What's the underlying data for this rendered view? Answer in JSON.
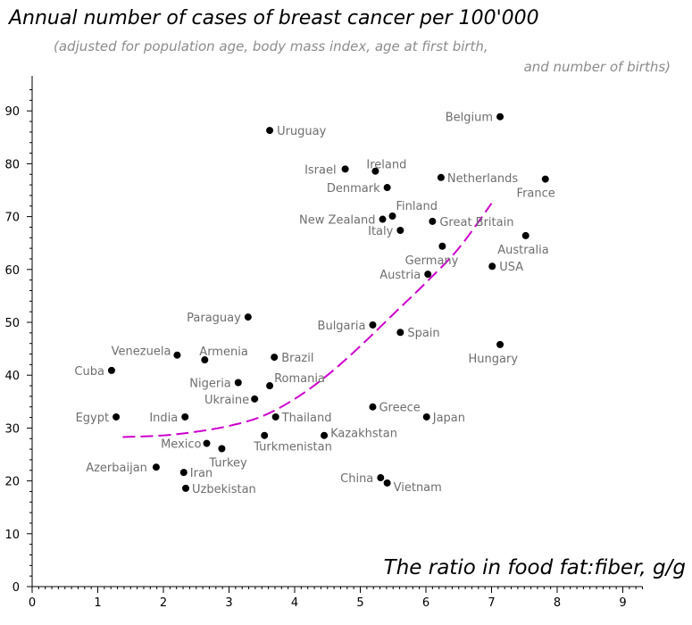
{
  "chart_data": {
    "type": "scatter",
    "title": "Annual number of cases of breast cancer per 100'000",
    "subtitle_lines": [
      "(adjusted for population age, body mass index, age at first birth,",
      "and number of births)"
    ],
    "xlabel": "The ratio in food fat:fiber, g/g",
    "ylabel": "",
    "xlim": [
      0,
      9.3
    ],
    "ylim": [
      0,
      95
    ],
    "x_ticks": [
      0,
      1,
      2,
      3,
      4,
      5,
      6,
      7,
      8,
      9
    ],
    "y_ticks": [
      0,
      10,
      20,
      30,
      40,
      50,
      60,
      70,
      80,
      90
    ],
    "grid": false,
    "point_color": "#000000",
    "trend_color": "#cc00cc",
    "points": [
      {
        "label": "Uruguay",
        "x": 3.62,
        "y": 86.3
      },
      {
        "label": "Belgium",
        "x": 7.13,
        "y": 88.9
      },
      {
        "label": "Israel",
        "x": 4.77,
        "y": 79.0
      },
      {
        "label": "Ireland",
        "x": 5.23,
        "y": 78.6
      },
      {
        "label": "Netherlands",
        "x": 6.23,
        "y": 77.4
      },
      {
        "label": "France",
        "x": 7.82,
        "y": 77.1
      },
      {
        "label": "Denmark",
        "x": 5.41,
        "y": 75.5
      },
      {
        "label": "New Zealand",
        "x": 5.34,
        "y": 69.5
      },
      {
        "label": "Finland",
        "x": 5.49,
        "y": 70.1
      },
      {
        "label": "Great Britain",
        "x": 6.1,
        "y": 69.1
      },
      {
        "label": "Italy",
        "x": 5.61,
        "y": 67.4
      },
      {
        "label": "Australia",
        "x": 7.52,
        "y": 66.4
      },
      {
        "label": "Germany",
        "x": 6.25,
        "y": 64.4
      },
      {
        "label": "USA",
        "x": 7.01,
        "y": 60.6
      },
      {
        "label": "Austria",
        "x": 6.03,
        "y": 59.1
      },
      {
        "label": "Paraguay",
        "x": 3.29,
        "y": 51.0
      },
      {
        "label": "Bulgaria",
        "x": 5.19,
        "y": 49.5
      },
      {
        "label": "Spain",
        "x": 5.61,
        "y": 48.1
      },
      {
        "label": "Hungary",
        "x": 7.13,
        "y": 45.8
      },
      {
        "label": "Venezuela",
        "x": 2.21,
        "y": 43.8
      },
      {
        "label": "Armenia",
        "x": 2.63,
        "y": 42.9
      },
      {
        "label": "Brazil",
        "x": 3.69,
        "y": 43.4
      },
      {
        "label": "Cuba",
        "x": 1.21,
        "y": 40.9
      },
      {
        "label": "Nigeria",
        "x": 3.14,
        "y": 38.6
      },
      {
        "label": "Romania",
        "x": 3.62,
        "y": 38.0
      },
      {
        "label": "Ukraine",
        "x": 3.39,
        "y": 35.5
      },
      {
        "label": "Greece",
        "x": 5.19,
        "y": 34.0
      },
      {
        "label": "Egypt",
        "x": 1.28,
        "y": 32.1
      },
      {
        "label": "India",
        "x": 2.33,
        "y": 32.1
      },
      {
        "label": "Thailand",
        "x": 3.71,
        "y": 32.1
      },
      {
        "label": "Japan",
        "x": 6.01,
        "y": 32.1
      },
      {
        "label": "Turkmenistan",
        "x": 3.54,
        "y": 28.6
      },
      {
        "label": "Kazakhstan",
        "x": 4.45,
        "y": 28.6
      },
      {
        "label": "Mexico",
        "x": 2.66,
        "y": 27.1
      },
      {
        "label": "Turkey",
        "x": 2.89,
        "y": 26.1
      },
      {
        "label": "Azerbaijan",
        "x": 1.89,
        "y": 22.6
      },
      {
        "label": "Iran",
        "x": 2.31,
        "y": 21.6
      },
      {
        "label": "China",
        "x": 5.31,
        "y": 20.6
      },
      {
        "label": "Vietnam",
        "x": 5.41,
        "y": 19.6
      },
      {
        "label": "Uzbekistan",
        "x": 2.34,
        "y": 18.6
      }
    ],
    "trend_line": [
      {
        "x": 1.38,
        "y": 28.3
      },
      {
        "x": 2.0,
        "y": 28.6
      },
      {
        "x": 2.5,
        "y": 29.3
      },
      {
        "x": 3.0,
        "y": 30.4
      },
      {
        "x": 3.5,
        "y": 32.2
      },
      {
        "x": 4.0,
        "y": 35.5
      },
      {
        "x": 4.5,
        "y": 40.0
      },
      {
        "x": 5.0,
        "y": 45.5
      },
      {
        "x": 5.5,
        "y": 51.5
      },
      {
        "x": 6.0,
        "y": 57.5
      },
      {
        "x": 6.5,
        "y": 64.0
      },
      {
        "x": 7.0,
        "y": 72.5
      }
    ]
  }
}
